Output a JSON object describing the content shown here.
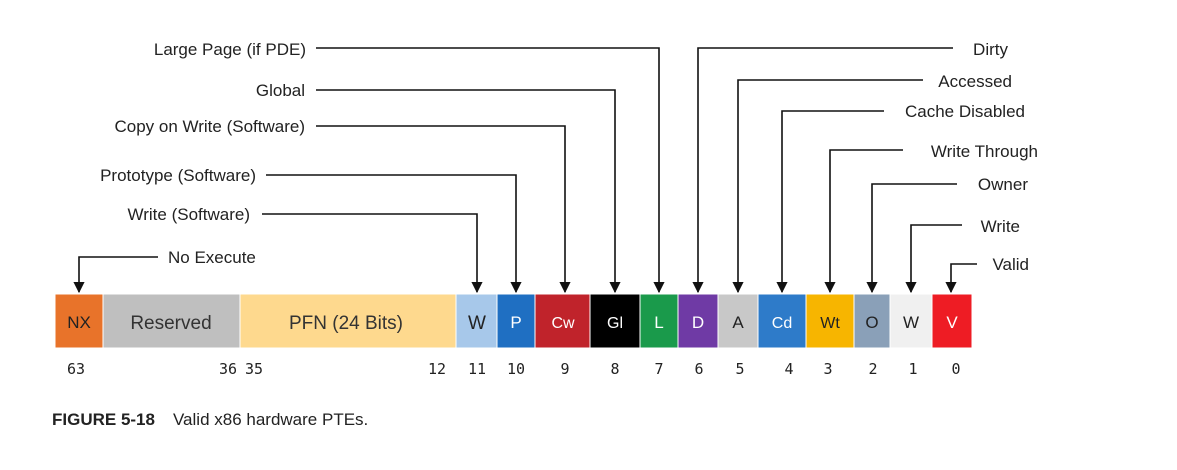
{
  "fields": [
    {
      "text": "NX",
      "color": "#e8732a",
      "text_color": "#222222"
    },
    {
      "text": "Reserved",
      "color": "#bfbfbf",
      "text_color": "#333333"
    },
    {
      "text": "PFN (24 Bits)",
      "color": "#fed98e",
      "text_color": "#333333"
    },
    {
      "text": "W",
      "color": "#a7c8ea",
      "text_color": "#222222"
    },
    {
      "text": "P",
      "color": "#1f6fc2",
      "text_color": "#ffffff"
    },
    {
      "text": "Cw",
      "color": "#c0232b",
      "text_color": "#ffffff"
    },
    {
      "text": "Gl",
      "color": "#000000",
      "text_color": "#ffffff"
    },
    {
      "text": "L",
      "color": "#1a9a4b",
      "text_color": "#ffffff"
    },
    {
      "text": "D",
      "color": "#6f3aa5",
      "text_color": "#ffffff"
    },
    {
      "text": "A",
      "color": "#c8c8c8",
      "text_color": "#222222"
    },
    {
      "text": "Cd",
      "color": "#2e7bc9",
      "text_color": "#ffffff"
    },
    {
      "text": "Wt",
      "color": "#f7b500",
      "text_color": "#222222"
    },
    {
      "text": "O",
      "color": "#8aa0b8",
      "text_color": "#222222"
    },
    {
      "text": "W",
      "color": "#f0f0f0",
      "text_color": "#222222"
    },
    {
      "text": "V",
      "color": "#ee1c24",
      "text_color": "#ffffff"
    }
  ],
  "bit_numbers": [
    "63",
    "36",
    "35",
    "12",
    "11",
    "10",
    "9",
    "8",
    "7",
    "6",
    "5",
    "4",
    "3",
    "2",
    "1",
    "0"
  ],
  "left_labels": [
    "Large Page (if PDE)",
    "Global",
    "Copy on Write (Software)",
    "Prototype (Software)",
    "Write (Software)",
    "No Execute"
  ],
  "right_labels": [
    "Dirty",
    "Accessed",
    "Cache Disabled",
    "Write Through",
    "Owner",
    "Write",
    "Valid"
  ],
  "caption": {
    "figure": "FIGURE 5-18",
    "text": "Valid x86 hardware PTEs."
  }
}
